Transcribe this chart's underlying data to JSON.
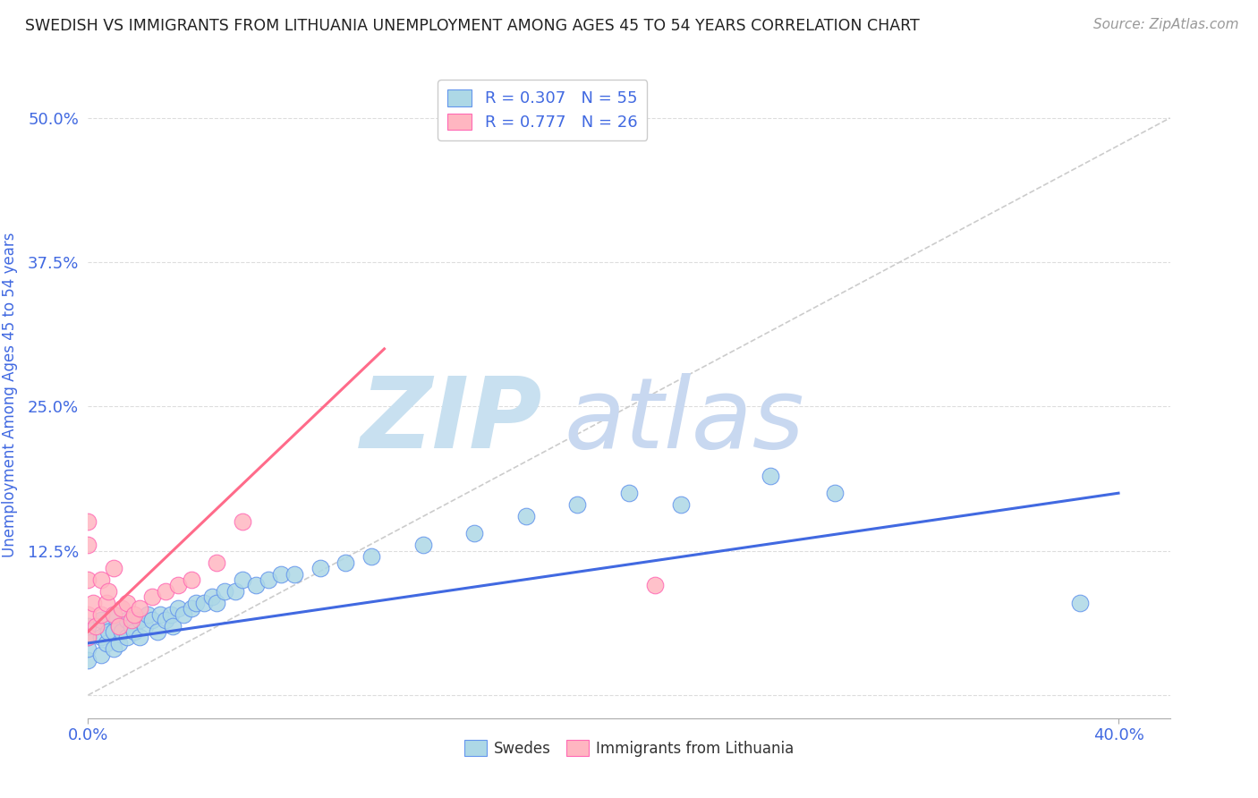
{
  "title": "SWEDISH VS IMMIGRANTS FROM LITHUANIA UNEMPLOYMENT AMONG AGES 45 TO 54 YEARS CORRELATION CHART",
  "source": "Source: ZipAtlas.com",
  "ylabel": "Unemployment Among Ages 45 to 54 years",
  "xlim": [
    0.0,
    0.42
  ],
  "ylim": [
    -0.02,
    0.54
  ],
  "yticks": [
    0.0,
    0.125,
    0.25,
    0.375,
    0.5
  ],
  "ytick_labels": [
    "",
    "12.5%",
    "25.0%",
    "37.5%",
    "50.0%"
  ],
  "R_swedes": 0.307,
  "N_swedes": 55,
  "R_lithuania": 0.777,
  "N_lithuania": 26,
  "swede_fill": "#ADD8E6",
  "swede_edge": "#6495ED",
  "lithuania_fill": "#FFB6C1",
  "lithuania_edge": "#FF69B4",
  "swede_line_color": "#4169E1",
  "lithuania_line_color": "#FF6B8A",
  "diag_line_color": "#CCCCCC",
  "axis_color": "#4169E1",
  "title_color": "#222222",
  "grid_color": "#DDDDDD",
  "watermark_zip_color": "#C8E0F0",
  "watermark_atlas_color": "#C8D8F0",
  "swedes_x": [
    0.0,
    0.0,
    0.0,
    0.0,
    0.005,
    0.005,
    0.005,
    0.007,
    0.008,
    0.01,
    0.01,
    0.01,
    0.012,
    0.012,
    0.013,
    0.015,
    0.015,
    0.017,
    0.018,
    0.02,
    0.02,
    0.022,
    0.023,
    0.025,
    0.027,
    0.028,
    0.03,
    0.032,
    0.033,
    0.035,
    0.037,
    0.04,
    0.042,
    0.045,
    0.048,
    0.05,
    0.053,
    0.057,
    0.06,
    0.065,
    0.07,
    0.075,
    0.08,
    0.09,
    0.1,
    0.11,
    0.13,
    0.15,
    0.17,
    0.19,
    0.21,
    0.23,
    0.265,
    0.29,
    0.385
  ],
  "swedes_y": [
    0.03,
    0.04,
    0.05,
    0.06,
    0.035,
    0.05,
    0.065,
    0.045,
    0.055,
    0.04,
    0.055,
    0.07,
    0.045,
    0.06,
    0.055,
    0.05,
    0.065,
    0.06,
    0.055,
    0.05,
    0.065,
    0.06,
    0.07,
    0.065,
    0.055,
    0.07,
    0.065,
    0.07,
    0.06,
    0.075,
    0.07,
    0.075,
    0.08,
    0.08,
    0.085,
    0.08,
    0.09,
    0.09,
    0.1,
    0.095,
    0.1,
    0.105,
    0.105,
    0.11,
    0.115,
    0.12,
    0.13,
    0.14,
    0.155,
    0.165,
    0.175,
    0.165,
    0.19,
    0.175,
    0.08
  ],
  "lithuania_x": [
    0.0,
    0.0,
    0.0,
    0.0,
    0.0,
    0.002,
    0.003,
    0.005,
    0.005,
    0.007,
    0.008,
    0.01,
    0.01,
    0.012,
    0.013,
    0.015,
    0.017,
    0.018,
    0.02,
    0.025,
    0.03,
    0.035,
    0.04,
    0.05,
    0.06,
    0.22
  ],
  "lithuania_y": [
    0.05,
    0.07,
    0.1,
    0.13,
    0.15,
    0.08,
    0.06,
    0.07,
    0.1,
    0.08,
    0.09,
    0.07,
    0.11,
    0.06,
    0.075,
    0.08,
    0.065,
    0.07,
    0.075,
    0.085,
    0.09,
    0.095,
    0.1,
    0.115,
    0.15,
    0.095
  ],
  "swede_trendline_x": [
    0.0,
    0.4
  ],
  "swede_trendline_y": [
    0.045,
    0.175
  ],
  "lithuania_trendline_x": [
    0.0,
    0.115
  ],
  "lithuania_trendline_y": [
    0.055,
    0.3
  ]
}
